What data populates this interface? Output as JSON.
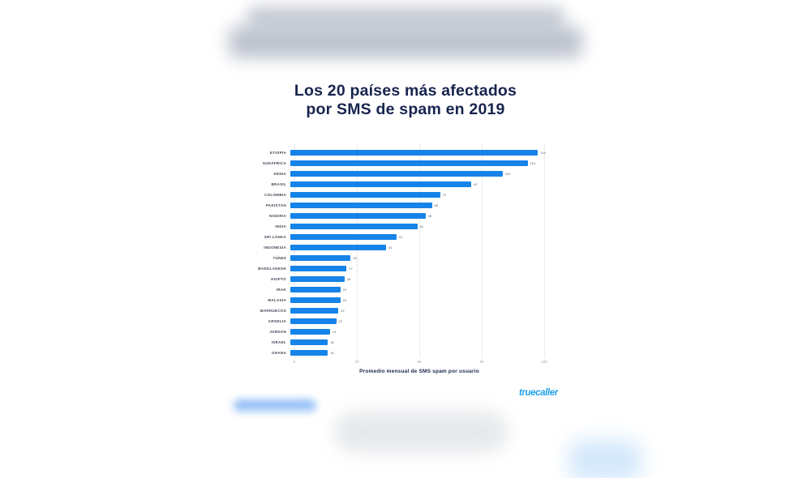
{
  "page": {
    "background": "#ffffff"
  },
  "title": {
    "lines": [
      "Los 20 países más afectados",
      "por SMS de spam en 2019"
    ],
    "color": "#17244E"
  },
  "chart_data": {
    "type": "bar",
    "orientation": "horizontal",
    "title": "Los 20 países más afectados por SMS de spam en 2019",
    "categories": [
      "ETIOPÍA",
      "SUDÁFRICA",
      "KENIA",
      "BRASIL",
      "COLOMBIA",
      "PAKISTÁN",
      "NIGERIA",
      "INDIA",
      "SRI LANKA",
      "INDONESIA",
      "TÚNEZ",
      "BANGLADESH",
      "EGIPTO",
      "IRAK",
      "MALASIA",
      "MARRUECOS",
      "ARGELIA",
      "JORDÁN",
      "ISRAEL",
      "GHANA"
    ],
    "values": [
      119,
      114,
      102,
      87,
      72,
      68,
      65,
      61,
      51,
      46,
      29,
      27,
      26,
      24,
      24,
      23,
      22,
      19,
      18,
      18
    ],
    "xlabel": "Promedio mensual de SMS spam por usuario",
    "xticks": [
      0,
      30,
      60,
      90,
      120
    ],
    "xlim": [
      0,
      120
    ],
    "bar_color": "#1583E8",
    "grid": "vertical-only",
    "legend": "none",
    "value_labels": "end-of-bar"
  },
  "branding": {
    "logo_text": "truecaller",
    "logo_color": "#1FA0EA"
  }
}
